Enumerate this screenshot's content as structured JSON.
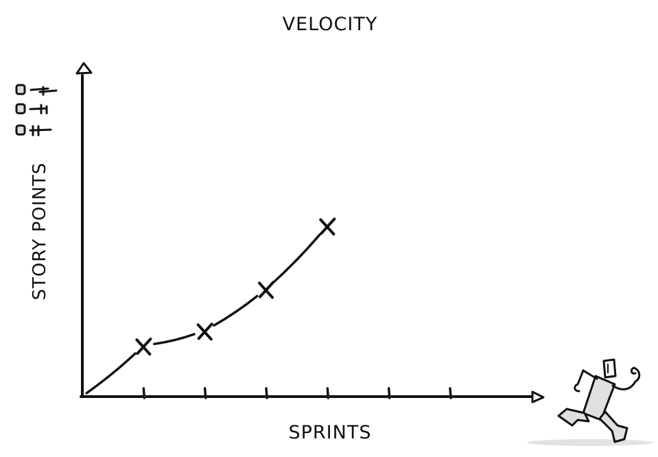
{
  "chart_data": {
    "type": "line",
    "title": "VELOCITY",
    "xlabel": "SPRINTS",
    "ylabel": "STORY POINTS",
    "x_ticks": [
      1,
      2,
      3,
      4,
      5,
      6
    ],
    "x": [
      0,
      1,
      2,
      3,
      4
    ],
    "y": [
      0,
      15,
      19.5,
      32,
      51
    ],
    "xlim": [
      0,
      7.5
    ],
    "ylim": [
      0,
      100
    ],
    "grid": false,
    "legend": "none"
  },
  "colors": {
    "ink": "#111111",
    "shade": "#dddddd"
  },
  "icons": [
    "checklist-icon",
    "running-figure-icon"
  ]
}
